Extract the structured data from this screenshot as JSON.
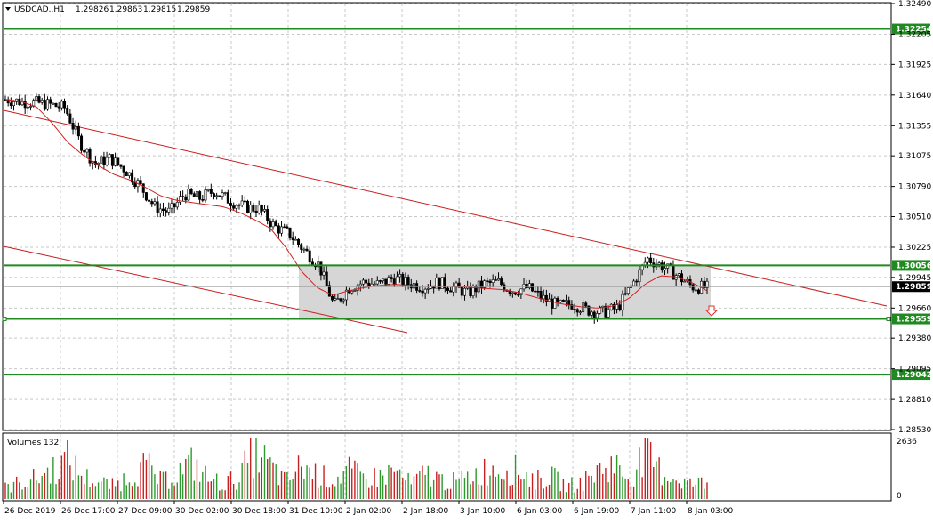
{
  "header": {
    "symbol": "USDCAD..H1",
    "open": "1.29826",
    "high": "1.29863",
    "low": "1.29815",
    "close": "1.29859",
    "dropdown_icon": "triangle-down-icon"
  },
  "volume_panel": {
    "label": "Volumes 132",
    "scale_max_label": "2636",
    "scale_min_label": "0",
    "max": 2636
  },
  "price_axis": {
    "ticks": [
      "1.32490",
      "1.32205",
      "1.31925",
      "1.31640",
      "1.31355",
      "1.31075",
      "1.30790",
      "1.30510",
      "1.30225",
      "1.29945",
      "1.29660",
      "1.29380",
      "1.29095",
      "1.28810",
      "1.28530"
    ]
  },
  "time_axis": {
    "labels": [
      "26 Dec 2019",
      "26 Dec 17:00",
      "27 Dec 09:00",
      "30 Dec 02:00",
      "30 Dec 18:00",
      "31 Dec 10:00",
      "2 Jan 02:00",
      "2 Jan 18:00",
      "3 Jan 10:00",
      "6 Jan 03:00",
      "6 Jan 19:00",
      "7 Jan 11:00",
      "8 Jan 03:00"
    ]
  },
  "levels": [
    {
      "price": "1.32254",
      "color": "#1f8a1f",
      "name": "resistance-upper"
    },
    {
      "price": "1.30056",
      "color": "#1f8a1f",
      "name": "range-top"
    },
    {
      "price": "1.29559",
      "color": "#1f8a1f",
      "name": "range-bottom"
    },
    {
      "price": "1.29042",
      "color": "#1f8a1f",
      "name": "support-lower"
    }
  ],
  "current_price": {
    "price": "1.29859",
    "color": "#000000"
  },
  "colors": {
    "grid": "#c8c8c8",
    "candle": "#000000",
    "ma": "#d42020",
    "trend": "#c81e1e",
    "range_box": "#d6d6d6",
    "vol_up": "#2e9a2e",
    "vol_down": "#c82020",
    "sell_arrow": "#e03030"
  },
  "chart_data": {
    "type": "candlestick",
    "symbol": "USDCAD..H1",
    "y_range": [
      1.2853,
      1.3249
    ],
    "x_start": "26 Dec 2019",
    "x_end": "8 Jan 03:00",
    "close_path": [
      1.316,
      1.3158,
      1.3157,
      1.3155,
      1.3152,
      1.312,
      1.31,
      1.3105,
      1.3095,
      1.308,
      1.306,
      1.3055,
      1.3072,
      1.3068,
      1.3075,
      1.3066,
      1.306,
      1.3058,
      1.3042,
      1.3035,
      1.302,
      1.3006,
      1.2968,
      1.2985,
      1.299,
      1.2988,
      1.2994,
      1.2989,
      1.2986,
      1.299,
      1.2985,
      1.298,
      1.2988,
      1.299,
      1.2982,
      1.2985,
      1.2975,
      1.2968,
      1.297,
      1.2964,
      1.2962,
      1.2966,
      1.2988,
      1.3012,
      1.3005,
      1.2996,
      1.2986,
      1.2985
    ],
    "ma_path": [
      1.316,
      1.3158,
      1.3153,
      1.3138,
      1.312,
      1.3108,
      1.3098,
      1.309,
      1.3085,
      1.3078,
      1.307,
      1.3066,
      1.3064,
      1.3062,
      1.306,
      1.3055,
      1.3048,
      1.304,
      1.3022,
      1.3,
      1.2985,
      1.2978,
      1.2982,
      1.2985,
      1.2987,
      1.2988,
      1.2987,
      1.2986,
      1.2986,
      1.2986,
      1.2985,
      1.2984,
      1.2983,
      1.298,
      1.2976,
      1.2972,
      1.2969,
      1.2967,
      1.2966,
      1.2968,
      1.2975,
      1.2988,
      1.2996,
      1.2995,
      1.299,
      1.2982
    ],
    "volume_path": [
      600,
      900,
      1100,
      1600,
      2100,
      1200,
      900,
      700,
      1300,
      1800,
      900,
      1400,
      1900,
      1100,
      800,
      1200,
      2600,
      1700,
      900,
      1800,
      1300,
      1000,
      1500,
      1100,
      1200,
      1500,
      800,
      1400,
      1000,
      900,
      1300,
      1600,
      1700,
      1500,
      1000,
      1200,
      700,
      900,
      1500,
      1900,
      1100,
      2400,
      1500,
      1100,
      800,
      900
    ]
  }
}
